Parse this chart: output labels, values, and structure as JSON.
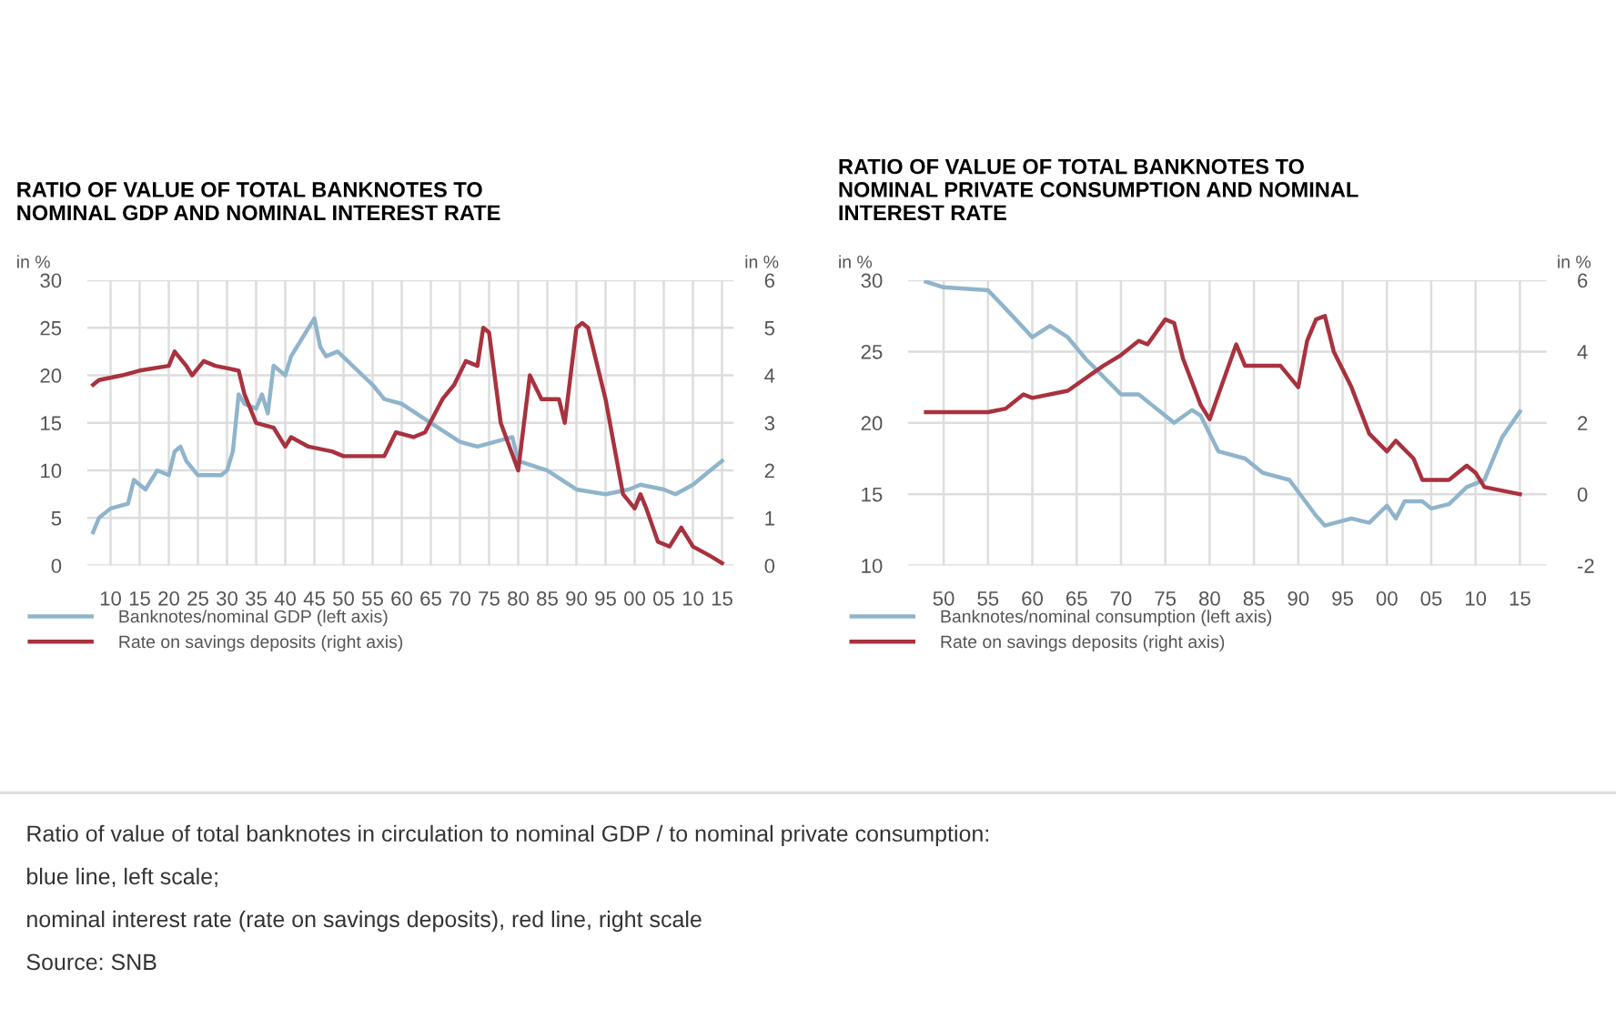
{
  "chart_data": [
    {
      "type": "line",
      "title": "RATIO OF VALUE OF TOTAL BANKNOTES TO\nNOMINAL GDP AND NOMINAL INTEREST RATE",
      "ylabel": "in %",
      "y2label": "in %",
      "xlim": [
        1906,
        2017
      ],
      "xticks": [
        {
          "value": 1910,
          "label": "10"
        },
        {
          "value": 1915,
          "label": "15"
        },
        {
          "value": 1920,
          "label": "20"
        },
        {
          "value": 1925,
          "label": "25"
        },
        {
          "value": 1930,
          "label": "30"
        },
        {
          "value": 1935,
          "label": "35"
        },
        {
          "value": 1940,
          "label": "40"
        },
        {
          "value": 1945,
          "label": "45"
        },
        {
          "value": 1950,
          "label": "50"
        },
        {
          "value": 1955,
          "label": "55"
        },
        {
          "value": 1960,
          "label": "60"
        },
        {
          "value": 1965,
          "label": "65"
        },
        {
          "value": 1970,
          "label": "70"
        },
        {
          "value": 1975,
          "label": "75"
        },
        {
          "value": 1980,
          "label": "80"
        },
        {
          "value": 1985,
          "label": "85"
        },
        {
          "value": 1990,
          "label": "90"
        },
        {
          "value": 1995,
          "label": "95"
        },
        {
          "value": 2000,
          "label": "00"
        },
        {
          "value": 2005,
          "label": "05"
        },
        {
          "value": 2010,
          "label": "10"
        },
        {
          "value": 2015,
          "label": "15"
        }
      ],
      "ylim": [
        0,
        30
      ],
      "yticks": [
        0,
        5,
        10,
        15,
        20,
        25,
        30
      ],
      "y2lim": [
        0,
        6
      ],
      "y2ticks": [
        0,
        1,
        2,
        3,
        4,
        5,
        6
      ],
      "grid": true,
      "legend": "bottom",
      "series": [
        {
          "name": "Banknotes/nominal GDP (left axis)",
          "color": "#8fb4cc",
          "x": [
            1907,
            1908,
            1910,
            1913,
            1914,
            1916,
            1918,
            1920,
            1921,
            1922,
            1923,
            1925,
            1929,
            1930,
            1931,
            1932,
            1933,
            1935,
            1936,
            1937,
            1938,
            1940,
            1941,
            1943,
            1945,
            1946,
            1947,
            1949,
            1955,
            1957,
            1960,
            1965,
            1970,
            1973,
            1976,
            1979,
            1980,
            1985,
            1990,
            1995,
            1999,
            2001,
            2005,
            2007,
            2010,
            2013,
            2015
          ],
          "values": [
            3.5,
            5,
            6,
            6.5,
            9,
            8,
            10,
            9.5,
            12,
            12.5,
            11,
            9.5,
            9.5,
            10,
            12,
            18,
            17,
            16.5,
            18,
            16,
            21,
            20,
            22,
            24,
            26,
            23,
            22,
            22.5,
            19,
            17.5,
            17,
            15,
            13,
            12.5,
            13,
            13.5,
            11,
            10,
            8,
            7.5,
            8,
            8.5,
            8,
            7.5,
            8.5,
            10,
            11
          ]
        },
        {
          "name": "Rate on savings deposits (right axis)",
          "color": "#a8323e",
          "axis": "y2",
          "x": [
            1907,
            1908,
            1912,
            1915,
            1920,
            1921,
            1923,
            1924,
            1926,
            1928,
            1932,
            1933,
            1935,
            1938,
            1940,
            1941,
            1944,
            1948,
            1950,
            1957,
            1959,
            1962,
            1964,
            1967,
            1969,
            1971,
            1973,
            1974,
            1975,
            1977,
            1980,
            1982,
            1984,
            1987,
            1988,
            1990,
            1991,
            1992,
            1995,
            1998,
            2000,
            2001,
            2002,
            2004,
            2006,
            2008,
            2010,
            2013,
            2015
          ],
          "values": [
            3.8,
            3.9,
            4.0,
            4.1,
            4.2,
            4.5,
            4.2,
            4.0,
            4.3,
            4.2,
            4.1,
            3.6,
            3.0,
            2.9,
            2.5,
            2.7,
            2.5,
            2.4,
            2.3,
            2.3,
            2.8,
            2.7,
            2.8,
            3.5,
            3.8,
            4.3,
            4.2,
            5.0,
            4.9,
            3.0,
            2.0,
            4.0,
            3.5,
            3.5,
            3.0,
            5.0,
            5.1,
            5.0,
            3.5,
            1.5,
            1.2,
            1.5,
            1.2,
            0.5,
            0.4,
            0.8,
            0.4,
            0.2,
            0.05
          ]
        }
      ],
      "annotations": [
        "Ratio of value of total banknotes in circulation to nominal GDP / to nominal private consumption:",
        "blue line, left scale;",
        "nominal interest rate (rate on savings deposits), red line, right scale",
        "Source: SNB"
      ]
    },
    {
      "type": "line",
      "title": "RATIO OF VALUE OF TOTAL BANKNOTES TO\nNOMINAL PRIVATE CONSUMPTION AND NOMINAL\nINTEREST RATE",
      "ylabel": "in %",
      "y2label": "in %",
      "xlim": [
        1946,
        2018
      ],
      "xticks": [
        {
          "value": 1950,
          "label": "50"
        },
        {
          "value": 1955,
          "label": "55"
        },
        {
          "value": 1960,
          "label": "60"
        },
        {
          "value": 1965,
          "label": "65"
        },
        {
          "value": 1970,
          "label": "70"
        },
        {
          "value": 1975,
          "label": "75"
        },
        {
          "value": 1980,
          "label": "80"
        },
        {
          "value": 1985,
          "label": "85"
        },
        {
          "value": 1990,
          "label": "90"
        },
        {
          "value": 1995,
          "label": "95"
        },
        {
          "value": 2000,
          "label": "00"
        },
        {
          "value": 2005,
          "label": "05"
        },
        {
          "value": 2010,
          "label": "10"
        },
        {
          "value": 2015,
          "label": "15"
        }
      ],
      "ylim": [
        10,
        30
      ],
      "yticks": [
        10,
        15,
        20,
        25,
        30
      ],
      "y2lim": [
        -2,
        6
      ],
      "y2ticks": [
        -2,
        0,
        2,
        4,
        6
      ],
      "grid": true,
      "legend": "bottom",
      "series": [
        {
          "name": "Banknotes/nominal consumption (left axis)",
          "color": "#8fb4cc",
          "x": [
            1948,
            1950,
            1955,
            1957,
            1960,
            1962,
            1964,
            1966,
            1970,
            1972,
            1976,
            1978,
            1979,
            1981,
            1984,
            1986,
            1989,
            1992,
            1993,
            1996,
            1998,
            2000,
            2001,
            2002,
            2004,
            2005,
            2007,
            2009,
            2011,
            2012,
            2013,
            2015
          ],
          "values": [
            29.9,
            29.5,
            29.3,
            28,
            26,
            26.8,
            26,
            24.5,
            22,
            22,
            20,
            20.9,
            20.5,
            18,
            17.5,
            16.5,
            16,
            13.5,
            12.8,
            13.3,
            13,
            14.2,
            13.3,
            14.5,
            14.5,
            14,
            14.3,
            15.5,
            16,
            17.5,
            19,
            20.8
          ]
        },
        {
          "name": "Rate on savings deposits (right axis)",
          "color": "#a8323e",
          "axis": "y2",
          "x": [
            1948,
            1955,
            1957,
            1959,
            1960,
            1964,
            1968,
            1970,
            1972,
            1973,
            1975,
            1976,
            1977,
            1979,
            1980,
            1983,
            1984,
            1988,
            1990,
            1991,
            1992,
            1993,
            1994,
            1996,
            1998,
            2000,
            2001,
            2003,
            2004,
            2007,
            2009,
            2010,
            2011,
            2015
          ],
          "values": [
            2.3,
            2.3,
            2.4,
            2.8,
            2.7,
            2.9,
            3.6,
            3.9,
            4.3,
            4.2,
            4.9,
            4.8,
            3.8,
            2.5,
            2.1,
            4.2,
            3.6,
            3.6,
            3.0,
            4.3,
            4.9,
            5.0,
            4.0,
            3.0,
            1.7,
            1.2,
            1.5,
            1.0,
            0.4,
            0.4,
            0.8,
            0.6,
            0.2,
            0.0
          ]
        }
      ]
    }
  ]
}
